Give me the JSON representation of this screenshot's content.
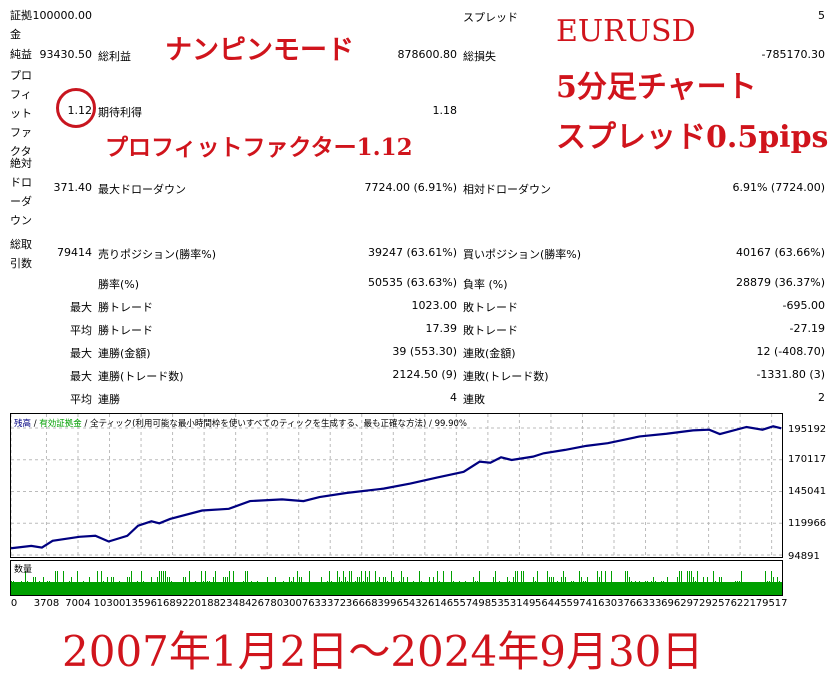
{
  "stats": {
    "deposit": {
      "label": "証拠金",
      "value": "100000.00"
    },
    "spread": {
      "label": "スプレッド",
      "value": "5"
    },
    "net_profit": {
      "label": "純益",
      "value": "93430.50"
    },
    "gross_profit": {
      "label": "総利益",
      "value": "878600.80"
    },
    "gross_loss": {
      "label": "総損失",
      "value": "-785170.30"
    },
    "profit_factor": {
      "label": "プロフィットファクタ",
      "value": "1.12"
    },
    "expected_payoff": {
      "label": "期待利得",
      "value": "1.18"
    },
    "abs_drawdown": {
      "label": "絶対ドローダウン",
      "value": "371.40"
    },
    "max_drawdown": {
      "label": "最大ドローダウン",
      "value": "7724.00 (6.91%)"
    },
    "rel_drawdown": {
      "label": "相対ドローダウン",
      "value": "6.91% (7724.00)"
    },
    "total_trades": {
      "label": "総取引数",
      "value": "79414"
    },
    "short_positions": {
      "label": "売りポジション(勝率%)",
      "value": "39247 (63.61%)"
    },
    "long_positions": {
      "label": "買いポジション(勝率%)",
      "value": "40167 (63.66%)"
    },
    "rows": [
      {
        "prefix": "",
        "l1": "勝率(%)",
        "v1": "50535 (63.63%)",
        "l2": "負率 (%)",
        "v2": "28879 (36.37%)"
      },
      {
        "prefix": "最大",
        "l1": "勝トレード",
        "v1": "1023.00",
        "l2": "敗トレード",
        "v2": "-695.00"
      },
      {
        "prefix": "平均",
        "l1": "勝トレード",
        "v1": "17.39",
        "l2": "敗トレード",
        "v2": "-27.19"
      },
      {
        "prefix": "最大",
        "l1": "連勝(金額)",
        "v1": "39 (553.30)",
        "l2": "連敗(金額)",
        "v2": "12 (-408.70)"
      },
      {
        "prefix": "最大",
        "l1": "連勝(トレード数)",
        "v1": "2124.50 (9)",
        "l2": "連敗(トレード数)",
        "v2": "-1331.80 (3)"
      },
      {
        "prefix": "平均",
        "l1": "連勝",
        "v1": "4",
        "l2": "連敗",
        "v2": "2"
      }
    ]
  },
  "annotations": {
    "mode": "ナンピンモード",
    "pf": "プロフィットファクター1.12",
    "symbol": "EURUSD",
    "timeframe": "5分足チャート",
    "spread": "スプレッド0.5pips",
    "period": "2007年1月2日～2024年9月30日",
    "color": "#d0141c"
  },
  "chart_data": {
    "type": "line",
    "legend": {
      "balance": "残高",
      "equity": "有効証拠金",
      "model": "全ティック(利用可能な最小時間枠を使いすべてのティックを生成する、最も正確な方法)",
      "quality": "99.90%",
      "sep": "/"
    },
    "volume_label": "数量",
    "ylim": [
      94891,
      195192
    ],
    "yticks": [
      "195192",
      "170117",
      "145041",
      "119966",
      "94891"
    ],
    "xticks": [
      "0",
      "3708",
      "7004",
      "10300",
      "13596",
      "16892",
      "20188",
      "23484",
      "26780",
      "30076",
      "33372",
      "36668",
      "39965",
      "43261",
      "46557",
      "49853",
      "53149",
      "56445",
      "59741",
      "63037",
      "66333",
      "69629",
      "72925",
      "76221",
      "79517"
    ],
    "xlim": [
      0,
      80600
    ],
    "grid": true,
    "line_color": "#000080",
    "volume_color": "#00a000",
    "series": [
      {
        "x": [
          0,
          2120,
          3230,
          4350,
          7140,
          8820,
          10210,
          12160,
          13280,
          14680,
          15510,
          16630,
          19980,
          22770,
          24990,
          28340,
          30580,
          32250,
          35040,
          38950,
          41740,
          44530,
          47320,
          48990,
          50110,
          51230,
          52340,
          54570,
          55690,
          57920,
          60150,
          62380,
          65730,
          68520,
          71310,
          72990,
          74100,
          76890,
          78560,
          79680,
          80520
        ],
        "y": [
          100230,
          102100,
          100750,
          106080,
          109270,
          110070,
          105550,
          110070,
          118050,
          121510,
          119910,
          123370,
          130020,
          131350,
          137470,
          138800,
          137470,
          140660,
          143860,
          147320,
          151310,
          156090,
          160610,
          168590,
          167790,
          172050,
          169920,
          172580,
          175240,
          177900,
          181090,
          183220,
          188540,
          190670,
          193330,
          193860,
          190400,
          195990,
          193860,
          196520,
          194930
        ]
      }
    ]
  }
}
